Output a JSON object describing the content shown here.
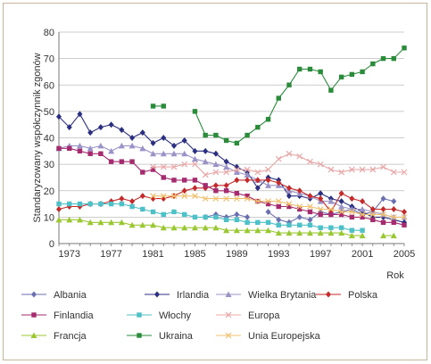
{
  "chart_data": {
    "type": "line",
    "ylabel": "Standaryzowany współczynnik zgonów",
    "xlabel": "Rok",
    "xlim": [
      1972,
      2005
    ],
    "ylim": [
      0,
      80
    ],
    "x_ticks": [
      "1973",
      "1977",
      "1981",
      "1985",
      "1989",
      "1993",
      "1997",
      "2001",
      "2005"
    ],
    "y_ticks": [
      "0",
      "10",
      "20",
      "30",
      "40",
      "50",
      "60",
      "70",
      "80"
    ],
    "grid": "horizontal",
    "legend_position": "bottom",
    "x": [
      1972,
      1973,
      1974,
      1975,
      1976,
      1977,
      1978,
      1979,
      1980,
      1981,
      1982,
      1983,
      1984,
      1985,
      1986,
      1987,
      1988,
      1989,
      1990,
      1991,
      1992,
      1993,
      1994,
      1995,
      1996,
      1997,
      1998,
      1999,
      2000,
      2001,
      2002,
      2003,
      2004,
      2005
    ],
    "series": [
      {
        "name": "Albania",
        "color": "#6a6fb0",
        "marker": "diamond",
        "values": [
          null,
          null,
          null,
          null,
          null,
          null,
          null,
          null,
          null,
          null,
          null,
          null,
          null,
          null,
          10,
          11,
          10,
          11,
          10,
          null,
          12,
          9,
          8,
          10,
          9,
          12,
          11,
          12,
          13,
          11,
          12,
          17,
          16,
          null
        ]
      },
      {
        "name": "Irlandia",
        "color": "#2b2f80",
        "marker": "diamond",
        "values": [
          48,
          44,
          49,
          42,
          44,
          45,
          43,
          40,
          42,
          38,
          40,
          37,
          39,
          35,
          35,
          34,
          31,
          29,
          27,
          21,
          25,
          24,
          18,
          18,
          17,
          19,
          17,
          16,
          14,
          12,
          10,
          10,
          9,
          8
        ]
      },
      {
        "name": "Wielka Brytania",
        "color": "#9a93c8",
        "marker": "triangle",
        "values": [
          36,
          37,
          37,
          36,
          37,
          35,
          37,
          37,
          36,
          34,
          34,
          34,
          34,
          32,
          31,
          30,
          29,
          27,
          26,
          24,
          22,
          22,
          20,
          19,
          18,
          16,
          16,
          14,
          13,
          13,
          12,
          11,
          10,
          10
        ]
      },
      {
        "name": "Polska",
        "color": "#c42a2a",
        "marker": "diamond",
        "values": [
          13,
          14,
          14,
          15,
          15,
          16,
          17,
          16,
          18,
          17,
          17,
          18,
          20,
          21,
          21,
          22,
          22,
          24,
          24,
          24,
          24,
          23,
          21,
          20,
          18,
          17,
          12,
          19,
          17,
          16,
          13,
          13,
          13,
          12
        ]
      },
      {
        "name": "Finlandia",
        "color": "#a52a6e",
        "marker": "square",
        "values": [
          36,
          36,
          35,
          34,
          34,
          31,
          31,
          31,
          27,
          28,
          25,
          24,
          24,
          24,
          22,
          20,
          20,
          19,
          18,
          16,
          15,
          14,
          14,
          13,
          12,
          11,
          11,
          11,
          10,
          10,
          9,
          8,
          8,
          7
        ]
      },
      {
        "name": "Włochy",
        "color": "#4ec0c8",
        "marker": "square",
        "values": [
          15,
          15,
          15,
          15,
          15,
          15,
          15,
          14,
          13,
          12,
          11,
          12,
          11,
          10,
          10,
          10,
          9,
          9,
          8,
          8,
          8,
          7,
          7,
          7,
          7,
          6,
          6,
          6,
          5,
          5,
          null,
          null,
          null,
          null
        ]
      },
      {
        "name": "Europa",
        "color": "#e8a8a8",
        "marker": "x",
        "values": [
          null,
          null,
          null,
          null,
          null,
          null,
          null,
          null,
          null,
          29,
          29,
          29,
          30,
          30,
          26,
          27,
          27,
          28,
          28,
          27,
          28,
          32,
          34,
          33,
          31,
          30,
          28,
          27,
          28,
          28,
          28,
          29,
          27,
          27
        ]
      },
      {
        "name": "Francja",
        "color": "#9ac832",
        "marker": "triangle",
        "values": [
          9,
          9,
          9,
          8,
          8,
          8,
          8,
          7,
          7,
          7,
          6,
          6,
          6,
          6,
          6,
          6,
          5,
          5,
          5,
          5,
          5,
          4,
          4,
          4,
          4,
          4,
          4,
          4,
          3,
          3,
          null,
          3,
          3,
          null
        ]
      },
      {
        "name": "Ukraina",
        "color": "#2a8c3a",
        "marker": "square",
        "values": [
          null,
          null,
          null,
          null,
          null,
          null,
          null,
          null,
          null,
          52,
          52,
          null,
          null,
          50,
          41,
          41,
          39,
          38,
          41,
          44,
          47,
          55,
          60,
          66,
          66,
          65,
          58,
          63,
          64,
          65,
          68,
          70,
          70,
          74
        ]
      },
      {
        "name": "Unia Europejska",
        "color": "#f0c070",
        "marker": "x",
        "values": [
          null,
          null,
          null,
          null,
          null,
          null,
          null,
          null,
          null,
          18,
          18,
          18,
          18,
          18,
          17,
          17,
          17,
          17,
          17,
          16,
          16,
          16,
          15,
          14,
          14,
          13,
          13,
          12,
          12,
          11,
          11,
          11,
          10,
          10
        ]
      }
    ]
  }
}
